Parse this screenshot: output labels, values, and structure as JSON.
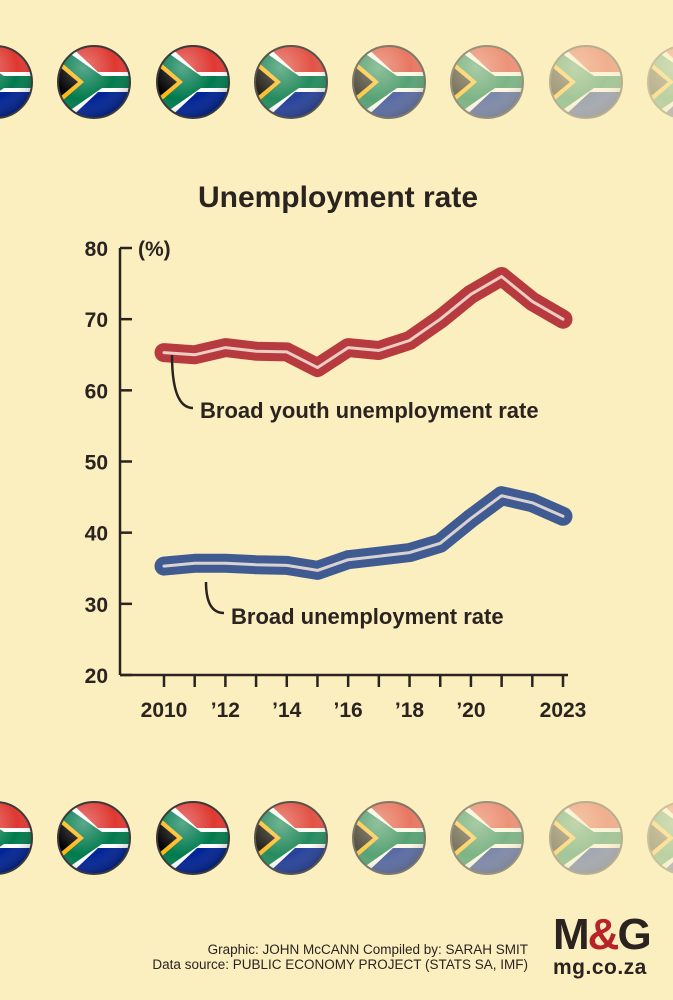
{
  "chart_data": {
    "type": "line",
    "title": "Unemployment rate",
    "ylabel": "(%)",
    "ylim": [
      20,
      80
    ],
    "yticks": [
      20,
      30,
      40,
      50,
      60,
      70,
      80
    ],
    "xlim": [
      2010,
      2023
    ],
    "xtick_labels": [
      {
        "x": 2010,
        "label": "2010"
      },
      {
        "x": 2012,
        "label": "’12"
      },
      {
        "x": 2014,
        "label": "’14"
      },
      {
        "x": 2016,
        "label": "’16"
      },
      {
        "x": 2018,
        "label": "’18"
      },
      {
        "x": 2020,
        "label": "’20"
      },
      {
        "x": 2023,
        "label": "2023"
      }
    ],
    "x": [
      2010,
      2011,
      2012,
      2013,
      2014,
      2015,
      2016,
      2017,
      2018,
      2019,
      2020,
      2021,
      2022,
      2023
    ],
    "series": [
      {
        "name": "Broad youth unemployment rate",
        "color": "#b73a3f",
        "values": [
          65.3,
          65.0,
          66.0,
          65.5,
          65.4,
          63.2,
          66.0,
          65.6,
          67.0,
          70.0,
          73.5,
          76.0,
          72.5,
          70.0
        ]
      },
      {
        "name": "Broad unemployment rate",
        "color": "#3f5b91",
        "values": [
          35.3,
          35.7,
          35.7,
          35.5,
          35.4,
          34.7,
          36.2,
          36.7,
          37.2,
          38.5,
          42.0,
          45.2,
          44.2,
          42.3
        ]
      }
    ]
  },
  "credits": {
    "line1": "Graphic: JOHN McCANN  Compiled by: SARAH SMIT",
    "line2": "Data source: PUBLIC ECONOMY PROJECT (STATS SA, IMF)"
  },
  "logo": {
    "text_m": "M",
    "text_amp": "&",
    "text_g": "G",
    "url": "mg.co.za"
  },
  "decor": {
    "icon": "south-africa-flag-icon",
    "colors": {
      "background": "#fbefc0",
      "youth_line": "#b73a3f",
      "broad_line": "#3f5b91",
      "flag_red": "#de3831",
      "flag_blue": "#002395",
      "flag_green": "#007a4d",
      "flag_gold": "#ffb612"
    }
  }
}
